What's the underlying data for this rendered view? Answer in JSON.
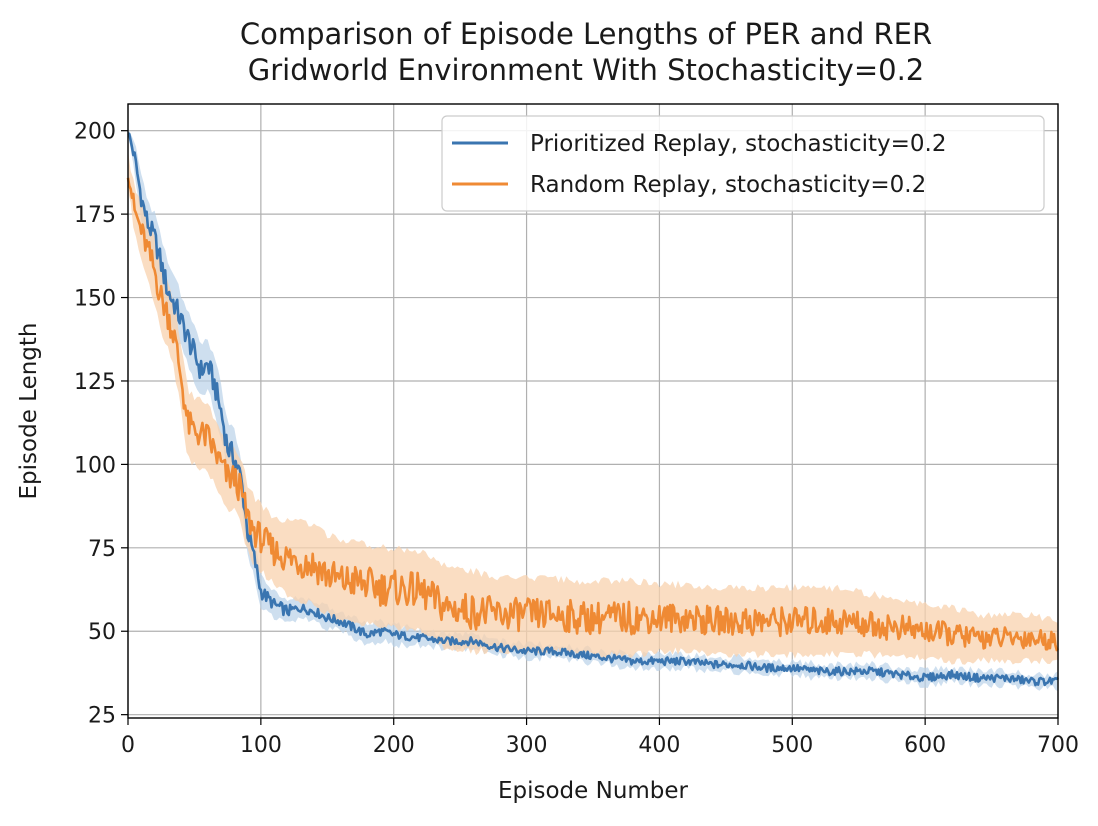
{
  "chart_data": {
    "type": "line",
    "title": [
      "Comparison of Episode Lengths of PER and RER",
      "Gridworld Environment With Stochasticity=0.2"
    ],
    "xlabel": "Episode Number",
    "ylabel": "Episode Length",
    "xlim": [
      0,
      700
    ],
    "ylim": [
      24,
      208
    ],
    "x_ticks": [
      0,
      100,
      200,
      300,
      400,
      500,
      600,
      700
    ],
    "y_ticks": [
      25,
      50,
      75,
      100,
      125,
      150,
      175,
      200
    ],
    "grid": true,
    "legend_position": "upper-right",
    "shaded_band": true,
    "series": [
      {
        "name": "Prioritized Replay, stochasticity=0.2",
        "color": "#3a75b0",
        "band_color": "#b9d1e8",
        "x": [
          0,
          5,
          10,
          15,
          20,
          25,
          30,
          35,
          40,
          45,
          50,
          55,
          60,
          65,
          70,
          75,
          80,
          85,
          90,
          95,
          100,
          110,
          120,
          130,
          140,
          150,
          160,
          170,
          180,
          190,
          200,
          220,
          240,
          260,
          280,
          300,
          320,
          340,
          360,
          380,
          400,
          420,
          440,
          460,
          480,
          500,
          520,
          540,
          560,
          580,
          600,
          620,
          640,
          660,
          680,
          700
        ],
        "y": [
          200,
          192,
          180,
          172,
          168,
          160,
          152,
          148,
          143,
          138,
          133,
          128,
          130,
          124,
          116,
          105,
          102,
          96,
          80,
          72,
          62,
          58,
          56,
          57,
          56,
          54,
          53,
          51,
          49,
          50,
          49,
          48,
          47,
          47,
          45,
          44,
          44,
          43,
          42,
          41,
          41,
          41,
          40,
          40,
          39,
          39,
          38,
          38,
          38,
          37,
          36,
          37,
          36,
          36,
          35,
          35
        ],
        "band": [
          2,
          5,
          6,
          7,
          7,
          8,
          8,
          8,
          8,
          8,
          8,
          8,
          8,
          8,
          8,
          8,
          8,
          7,
          7,
          6,
          5,
          4,
          4,
          3,
          3,
          3,
          3,
          3,
          3,
          3,
          3,
          2,
          2,
          2,
          2,
          2,
          2,
          2,
          2,
          2,
          2,
          2,
          2,
          2,
          2,
          2,
          2,
          2,
          2,
          2,
          2,
          2,
          2,
          2,
          2,
          2
        ]
      },
      {
        "name": "Random Replay, stochasticity=0.2",
        "color": "#ef8a34",
        "band_color": "#f8d2ad",
        "x": [
          0,
          5,
          10,
          15,
          20,
          25,
          30,
          35,
          40,
          45,
          50,
          55,
          60,
          65,
          70,
          75,
          80,
          85,
          90,
          95,
          100,
          110,
          120,
          130,
          140,
          150,
          160,
          170,
          180,
          190,
          200,
          220,
          240,
          260,
          280,
          300,
          320,
          340,
          360,
          380,
          400,
          420,
          440,
          460,
          480,
          500,
          520,
          540,
          560,
          580,
          600,
          620,
          640,
          660,
          680,
          700
        ],
        "y": [
          188,
          176,
          170,
          164,
          158,
          150,
          145,
          138,
          126,
          112,
          110,
          109,
          108,
          104,
          100,
          96,
          96,
          92,
          84,
          80,
          78,
          74,
          72,
          71,
          70,
          67,
          65,
          65,
          64,
          63,
          63,
          62,
          57,
          56,
          55,
          55,
          55,
          54,
          54,
          54,
          54,
          54,
          53,
          53,
          53,
          53,
          53,
          53,
          52,
          51,
          50,
          49,
          48,
          48,
          48,
          47
        ],
        "band": [
          5,
          7,
          8,
          9,
          10,
          10,
          10,
          10,
          10,
          10,
          10,
          10,
          10,
          10,
          10,
          10,
          10,
          10,
          10,
          10,
          10,
          10,
          11,
          12,
          12,
          12,
          12,
          12,
          12,
          12,
          12,
          12,
          12,
          12,
          11,
          11,
          11,
          11,
          11,
          11,
          10,
          10,
          10,
          10,
          10,
          10,
          10,
          10,
          9,
          9,
          8,
          8,
          7,
          7,
          7,
          6
        ]
      }
    ]
  }
}
